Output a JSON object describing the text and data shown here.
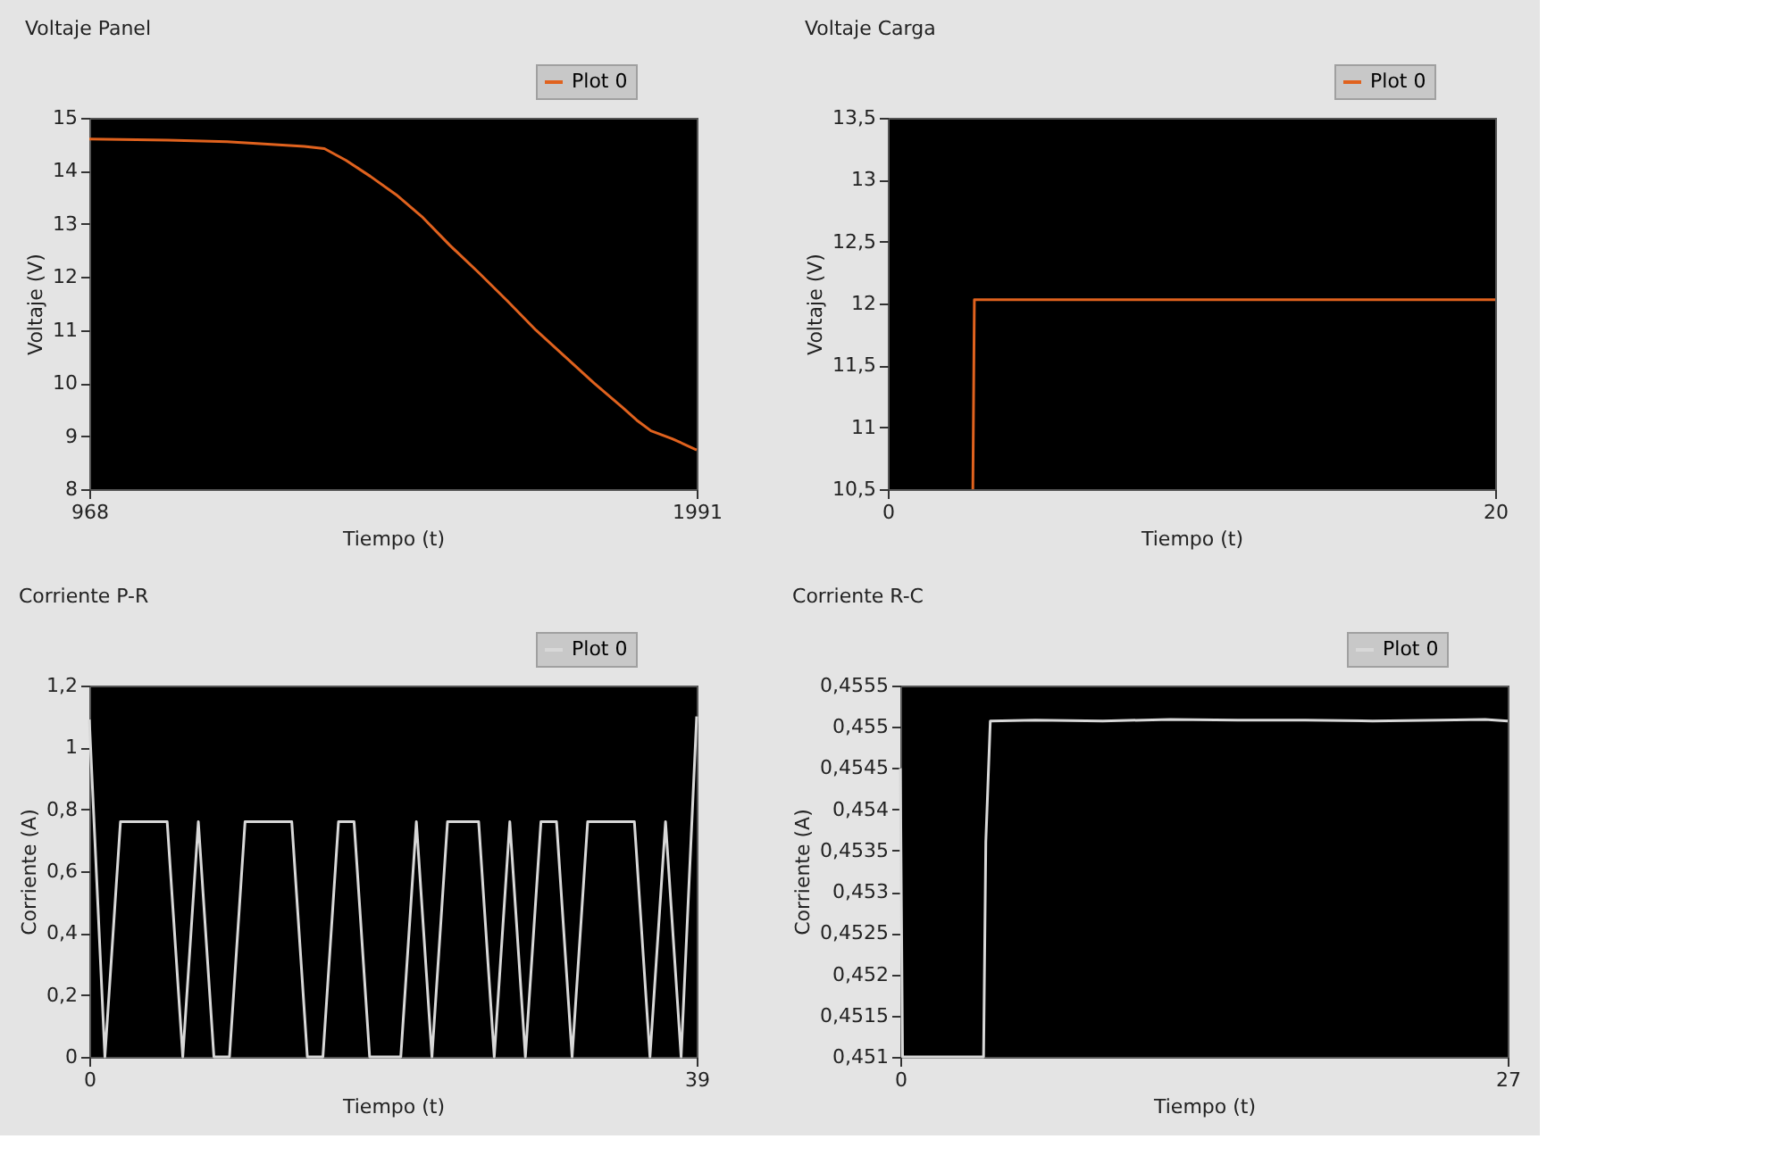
{
  "chart_data": [
    {
      "type": "line",
      "title": "Voltaje Panel",
      "xlabel": "Tiempo (t)",
      "ylabel": "Voltaje (V)",
      "legend": "top right",
      "grid": false,
      "series": [
        {
          "name": "Plot 0",
          "color": "#e0621e",
          "x": [
            968,
            1100,
            1200,
            1287,
            1330,
            1364,
            1400,
            1441,
            1485,
            1528,
            1575,
            1624,
            1672,
            1720,
            1769,
            1818,
            1866,
            1890,
            1914,
            1950,
            1991
          ],
          "values": [
            14.6,
            14.58,
            14.55,
            14.49,
            14.46,
            14.42,
            14.2,
            13.9,
            13.55,
            13.14,
            12.6,
            12.08,
            11.55,
            11.0,
            10.5,
            10.0,
            9.54,
            9.3,
            9.1,
            8.95,
            8.74
          ]
        }
      ],
      "xlim": [
        968,
        1991
      ],
      "xticks": [
        968,
        1991
      ],
      "ylim": [
        8,
        15
      ],
      "yticks": [
        8,
        9,
        10,
        11,
        12,
        13,
        14,
        15
      ]
    },
    {
      "type": "line",
      "title": "Voltaje Carga",
      "xlabel": "Tiempo (t)",
      "ylabel": "Voltaje (V)",
      "legend": "top right",
      "grid": false,
      "series": [
        {
          "name": "Plot 0",
          "color": "#e0621e",
          "x": [
            2.8,
            2.85,
            20
          ],
          "values": [
            10.5,
            12.03,
            12.03
          ]
        }
      ],
      "xlim": [
        0,
        20
      ],
      "xticks": [
        0,
        20
      ],
      "ylim": [
        10.5,
        13.5
      ],
      "yticks": [
        {
          "value": 10.5,
          "label": "10,5"
        },
        11,
        {
          "value": 11.5,
          "label": "11,5"
        },
        12,
        {
          "value": 12.5,
          "label": "12,5"
        },
        13,
        {
          "value": 13.5,
          "label": "13,5"
        }
      ]
    },
    {
      "type": "line",
      "title": "Corriente P-R",
      "xlabel": "Tiempo (t)",
      "ylabel": "Corriente (A)",
      "legend": "top right",
      "grid": false,
      "series": [
        {
          "name": "Plot 0",
          "color": "#d8d8d8",
          "x": [
            0,
            1,
            2,
            3,
            4,
            5,
            6,
            7,
            8,
            9,
            10,
            11,
            12,
            13,
            14,
            15,
            16,
            17,
            18,
            19,
            20,
            21,
            22,
            23,
            24,
            25,
            26,
            27,
            28,
            29,
            30,
            31,
            32,
            33,
            34,
            35,
            36,
            37,
            38,
            39
          ],
          "values": [
            1.09,
            0,
            0.76,
            0.76,
            0.76,
            0.76,
            0,
            0.76,
            0,
            0,
            0.76,
            0.76,
            0.76,
            0.76,
            0,
            0,
            0.76,
            0.76,
            0,
            0,
            0,
            0.76,
            0,
            0.76,
            0.76,
            0.76,
            0,
            0.76,
            0,
            0.76,
            0.76,
            0,
            0.76,
            0.76,
            0.76,
            0.76,
            0,
            0.76,
            0,
            1.1
          ]
        }
      ],
      "xlim": [
        0,
        39
      ],
      "xticks": [
        0,
        39
      ],
      "ylim": [
        0,
        1.2
      ],
      "yticks": [
        0,
        {
          "value": 0.2,
          "label": "0,2"
        },
        {
          "value": 0.4,
          "label": "0,4"
        },
        {
          "value": 0.6,
          "label": "0,6"
        },
        {
          "value": 0.8,
          "label": "0,8"
        },
        1,
        {
          "value": 1.2,
          "label": "1,2"
        }
      ]
    },
    {
      "type": "line",
      "title": "Corriente R-C",
      "xlabel": "Tiempo (t)",
      "ylabel": "Corriente (A)",
      "legend": "top right",
      "grid": false,
      "series": [
        {
          "name": "Plot 0",
          "color": "#d8d8d8",
          "x": [
            0,
            0.1,
            3.7,
            3.8,
            4.0,
            6,
            9,
            12,
            15,
            18,
            21,
            24,
            26,
            27
          ],
          "values": [
            0.4545,
            0.451,
            0.451,
            0.4536,
            0.45507,
            0.45508,
            0.45507,
            0.45509,
            0.45508,
            0.45508,
            0.45507,
            0.45508,
            0.45509,
            0.45507
          ]
        }
      ],
      "xlim": [
        0,
        27
      ],
      "xticks": [
        0,
        27
      ],
      "ylim": [
        0.451,
        0.4555
      ],
      "yticks": [
        {
          "value": 0.451,
          "label": "0,451"
        },
        {
          "value": 0.4515,
          "label": "0,4515"
        },
        {
          "value": 0.452,
          "label": "0,452"
        },
        {
          "value": 0.4525,
          "label": "0,4525"
        },
        {
          "value": 0.453,
          "label": "0,453"
        },
        {
          "value": 0.4535,
          "label": "0,4535"
        },
        {
          "value": 0.454,
          "label": "0,454"
        },
        {
          "value": 0.4545,
          "label": "0,4545"
        },
        {
          "value": 0.455,
          "label": "0,455"
        },
        {
          "value": 0.4555,
          "label": "0,4555"
        }
      ]
    }
  ]
}
